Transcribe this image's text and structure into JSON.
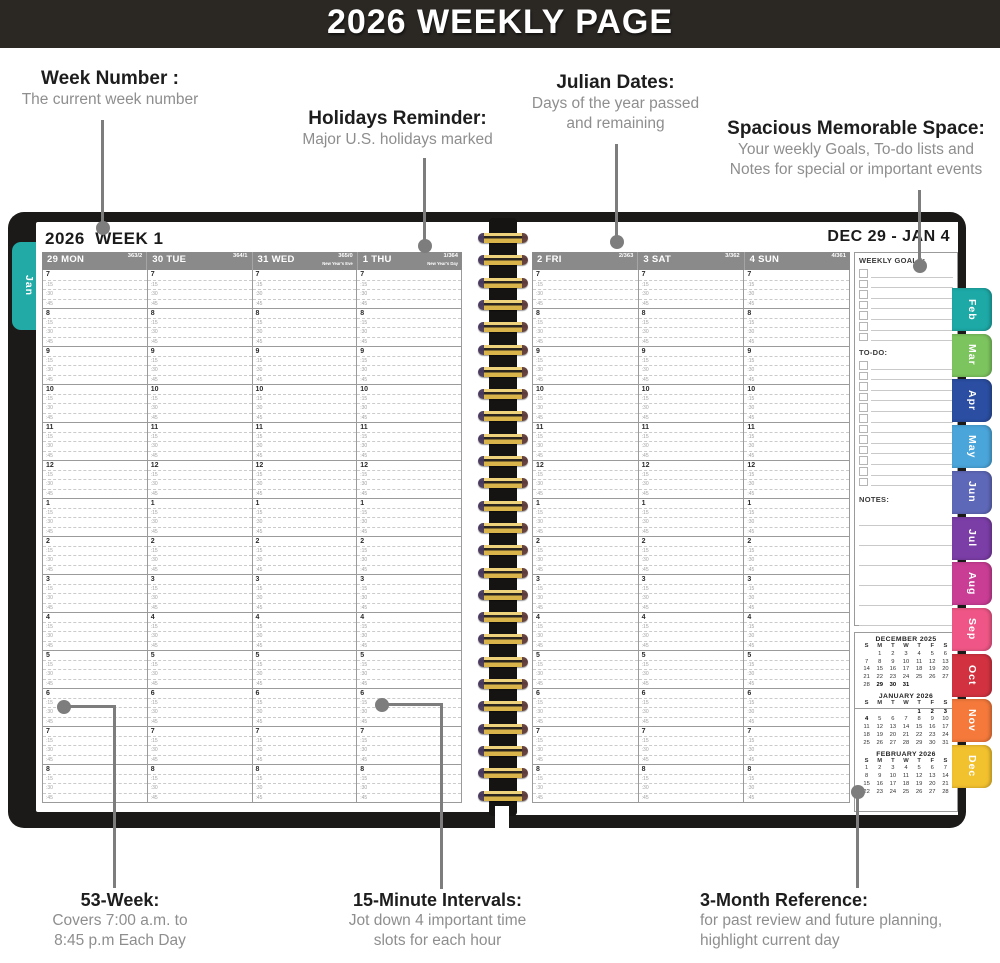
{
  "banner": {
    "title": "2026 WEEKLY PAGE"
  },
  "callouts": {
    "week_number": {
      "title": "Week Number :",
      "lines": [
        "The current week number"
      ]
    },
    "holidays_reminder": {
      "title": "Holidays Reminder:",
      "lines": [
        "Major U.S. holidays marked"
      ]
    },
    "julian_dates": {
      "title": "Julian Dates:",
      "lines": [
        "Days of the year passed",
        "and remaining"
      ]
    },
    "memorable_space": {
      "title": "Spacious Memorable Space:",
      "lines": [
        "Your weekly Goals, To-do lists and",
        "Notes for special or important events"
      ]
    },
    "week53": {
      "title": "53-Week:",
      "lines": [
        "Covers 7:00 a.m. to",
        "8:45 p.m Each Day"
      ]
    },
    "intervals": {
      "title": "15-Minute Intervals:",
      "lines": [
        "Jot down 4 important time",
        "slots for each hour"
      ]
    },
    "three_month": {
      "title": "3-Month Reference:",
      "lines": [
        "for past review and future planning,",
        "highlight current day"
      ]
    }
  },
  "planner": {
    "left_page": {
      "title": "2026  WEEK 1",
      "columns": [
        {
          "day": "29 MON",
          "julian": "363/2",
          "holiday": ""
        },
        {
          "day": "30 TUE",
          "julian": "364/1",
          "holiday": ""
        },
        {
          "day": "31 WED",
          "julian": "365/0",
          "holiday": "New Year's Eve"
        },
        {
          "day": "1 THU",
          "julian": "1/364",
          "holiday": "New Year's Day"
        }
      ]
    },
    "right_page": {
      "title": "DEC 29 - JAN 4",
      "columns": [
        {
          "day": "2 FRI",
          "julian": "2/363",
          "holiday": ""
        },
        {
          "day": "3 SAT",
          "julian": "3/362",
          "holiday": ""
        },
        {
          "day": "4 SUN",
          "julian": "4/361",
          "holiday": ""
        }
      ]
    },
    "schedule": {
      "hours": [
        "7",
        "8",
        "9",
        "10",
        "11",
        "12",
        "1",
        "2",
        "3",
        "4",
        "5",
        "6",
        "7",
        "8"
      ],
      "quarters": [
        ":15",
        ":30",
        ":45"
      ]
    },
    "sidebar": {
      "goals_label": "WEEKLY GOALS:",
      "goals_rows": 7,
      "todo_label": "TO-DO:",
      "todo_rows": 12,
      "notes_label": "NOTES:",
      "notes_rows": 6,
      "calendars": [
        {
          "title": "DECEMBER 2025",
          "day_header": [
            "S",
            "M",
            "T",
            "W",
            "T",
            "F",
            "S"
          ],
          "header_rule": false,
          "bold": [
            "29",
            "30",
            "31"
          ],
          "weeks": [
            [
              "",
              "1",
              "2",
              "3",
              "4",
              "5",
              "6"
            ],
            [
              "7",
              "8",
              "9",
              "10",
              "11",
              "12",
              "13"
            ],
            [
              "14",
              "15",
              "16",
              "17",
              "18",
              "19",
              "20"
            ],
            [
              "21",
              "22",
              "23",
              "24",
              "25",
              "26",
              "27"
            ],
            [
              "28",
              "29",
              "30",
              "31",
              "",
              "",
              ""
            ]
          ]
        },
        {
          "title": "JANUARY 2026",
          "day_header": [
            "S",
            "M",
            "T",
            "W",
            "T",
            "F",
            "S"
          ],
          "header_rule": true,
          "bold": [
            "1",
            "2",
            "3",
            "4"
          ],
          "weeks": [
            [
              "",
              "",
              "",
              "",
              "1",
              "2",
              "3"
            ],
            [
              "4",
              "5",
              "6",
              "7",
              "8",
              "9",
              "10"
            ],
            [
              "11",
              "12",
              "13",
              "14",
              "15",
              "16",
              "17"
            ],
            [
              "18",
              "19",
              "20",
              "21",
              "22",
              "23",
              "24"
            ],
            [
              "25",
              "26",
              "27",
              "28",
              "29",
              "30",
              "31"
            ]
          ]
        },
        {
          "title": "FEBRUARY 2026",
          "day_header": [
            "S",
            "M",
            "T",
            "W",
            "T",
            "F",
            "S"
          ],
          "header_rule": false,
          "bold": [],
          "weeks": [
            [
              "1",
              "2",
              "3",
              "4",
              "5",
              "6",
              "7"
            ],
            [
              "8",
              "9",
              "10",
              "11",
              "12",
              "13",
              "14"
            ],
            [
              "15",
              "16",
              "17",
              "18",
              "19",
              "20",
              "21"
            ],
            [
              "22",
              "23",
              "24",
              "25",
              "26",
              "27",
              "28"
            ]
          ]
        }
      ]
    },
    "tabs": {
      "left": {
        "label": "Jan",
        "color": "#21aaa6"
      },
      "right": [
        {
          "label": "Feb",
          "color": "#1da9a6"
        },
        {
          "label": "Mar",
          "color": "#7cc45e"
        },
        {
          "label": "Apr",
          "color": "#2b4ea2"
        },
        {
          "label": "May",
          "color": "#4aa5da"
        },
        {
          "label": "Jun",
          "color": "#5e68b8"
        },
        {
          "label": "Jul",
          "color": "#7b3da6"
        },
        {
          "label": "Aug",
          "color": "#c93d95"
        },
        {
          "label": "Sep",
          "color": "#ef5687"
        },
        {
          "label": "Oct",
          "color": "#d23240"
        },
        {
          "label": "Nov",
          "color": "#f4793b"
        },
        {
          "label": "Dec",
          "color": "#f2c12e"
        }
      ]
    }
  }
}
